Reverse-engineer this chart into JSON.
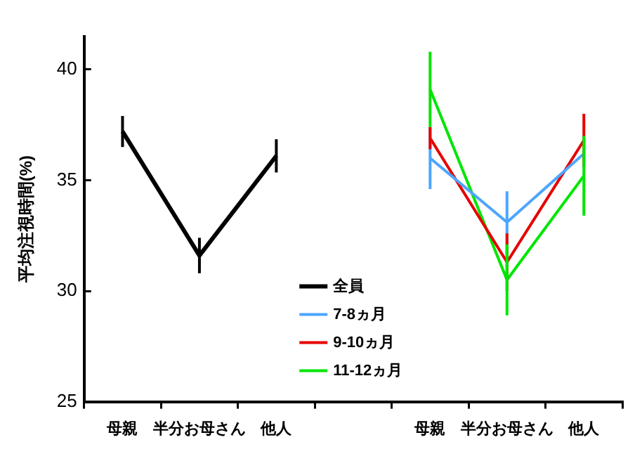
{
  "chart_data": {
    "type": "line",
    "ylabel": "平均注視時間(%)",
    "categories": [
      "母親",
      "半分お母さん",
      "他人",
      null,
      "母親",
      "半分お母さん",
      "他人"
    ],
    "series": [
      {
        "name": "全員",
        "color": "#000000",
        "values": [
          37.2,
          31.6,
          36.1,
          null,
          null,
          null,
          null
        ],
        "errors": [
          0.7,
          0.8,
          0.75,
          null,
          null,
          null,
          null
        ]
      },
      {
        "name": "7-8ヵ月",
        "color": "#4da6ff",
        "values": [
          null,
          null,
          null,
          null,
          36.0,
          33.1,
          36.2
        ],
        "errors": [
          null,
          null,
          null,
          null,
          1.4,
          1.4,
          null
        ]
      },
      {
        "name": "9-10ヵ月",
        "color": "#e60000",
        "values": [
          null,
          null,
          null,
          null,
          36.9,
          31.3,
          36.8
        ],
        "errors": [
          null,
          null,
          null,
          null,
          0.5,
          1.3,
          1.2
        ]
      },
      {
        "name": "11-12ヵ月",
        "color": "#00e600",
        "values": [
          null,
          null,
          null,
          null,
          39.1,
          30.5,
          35.2
        ],
        "errors": [
          null,
          null,
          null,
          null,
          1.7,
          1.6,
          1.8
        ]
      }
    ],
    "ylim": [
      25,
      41.5
    ],
    "yticks": [
      25,
      30,
      35,
      40
    ],
    "grid": false,
    "legend": "bottom",
    "marker": "none",
    "line_style": "solid"
  }
}
